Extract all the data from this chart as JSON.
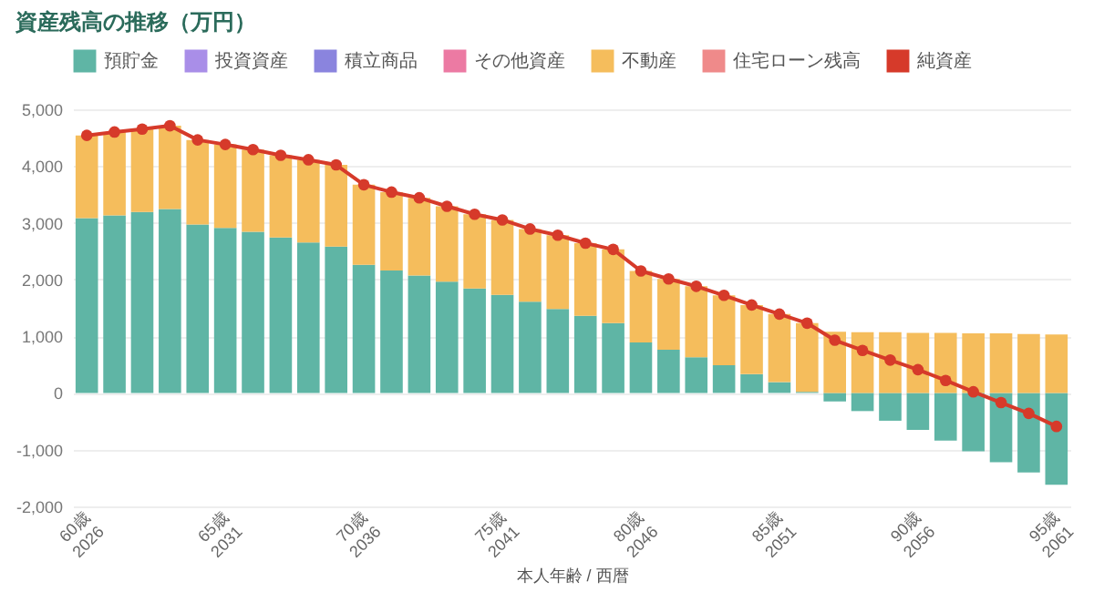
{
  "chart_data": {
    "type": "bar",
    "title": "資産残高の推移（万円）",
    "xlabel": "本人年齢 / 西暦",
    "categories": [
      "60歳\n2026",
      null,
      null,
      null,
      null,
      "65歳\n2031",
      null,
      null,
      null,
      null,
      "70歳\n2036",
      null,
      null,
      null,
      null,
      "75歳\n2041",
      null,
      null,
      null,
      null,
      "80歳\n2046",
      null,
      null,
      null,
      null,
      "85歳\n2051",
      null,
      null,
      null,
      null,
      "90歳\n2056",
      null,
      null,
      null,
      null,
      "95歳\n2061"
    ],
    "series": [
      {
        "name": "預貯金",
        "color": "#5fb5a5",
        "values": [
          3080,
          3130,
          3190,
          3240,
          2970,
          2910,
          2840,
          2740,
          2650,
          2580,
          2260,
          2160,
          2070,
          1960,
          1840,
          1730,
          1610,
          1480,
          1360,
          1230,
          890,
          760,
          630,
          490,
          330,
          190,
          20,
          -150,
          -320,
          -490,
          -650,
          -840,
          -1030,
          -1220,
          -1400,
          -1620
        ]
      },
      {
        "name": "投資資産",
        "color": "#a98ee8",
        "values": [
          null,
          null,
          null,
          null,
          null,
          null,
          null,
          null,
          null,
          null,
          null,
          null,
          null,
          null,
          null,
          null,
          null,
          null,
          null,
          null,
          null,
          null,
          null,
          null,
          null,
          null,
          null,
          null,
          null,
          null,
          null,
          null,
          null,
          null,
          null,
          null
        ]
      },
      {
        "name": "積立商品",
        "color": "#8a84de",
        "values": [
          null,
          null,
          null,
          null,
          null,
          null,
          null,
          null,
          null,
          null,
          null,
          null,
          null,
          null,
          null,
          null,
          null,
          null,
          null,
          null,
          null,
          null,
          null,
          null,
          null,
          null,
          null,
          null,
          null,
          null,
          null,
          null,
          null,
          null,
          null,
          null
        ]
      },
      {
        "name": "その他資産",
        "color": "#ec7aa3",
        "values": [
          null,
          null,
          null,
          null,
          null,
          null,
          null,
          null,
          null,
          null,
          null,
          null,
          null,
          null,
          null,
          null,
          null,
          null,
          null,
          null,
          null,
          null,
          null,
          null,
          null,
          null,
          null,
          null,
          null,
          null,
          null,
          null,
          null,
          null,
          null,
          null
        ]
      },
      {
        "name": "不動産",
        "color": "#f5bd5c",
        "values": [
          1460,
          1470,
          1460,
          1470,
          1490,
          1470,
          1450,
          1450,
          1460,
          1440,
          1410,
          1380,
          1370,
          1330,
          1310,
          1320,
          1280,
          1300,
          1280,
          1300,
          1260,
          1250,
          1250,
          1230,
          1220,
          1200,
          1210,
          1080,
          1070,
          1070,
          1060,
          1060,
          1050,
          1050,
          1040,
          1030
        ]
      },
      {
        "name": "住宅ローン残高",
        "color": "#ef8a8a",
        "values": [
          null,
          null,
          null,
          null,
          null,
          null,
          null,
          null,
          null,
          null,
          null,
          null,
          null,
          null,
          null,
          null,
          null,
          null,
          null,
          null,
          null,
          null,
          null,
          null,
          null,
          null,
          null,
          null,
          null,
          null,
          null,
          null,
          null,
          null,
          null,
          null
        ]
      },
      {
        "name": "純資産",
        "type": "line",
        "color": "#d63a2a",
        "values": [
          4540,
          4600,
          4650,
          4710,
          4460,
          4380,
          4290,
          4190,
          4110,
          4020,
          3670,
          3540,
          3440,
          3290,
          3150,
          3050,
          2890,
          2780,
          2640,
          2530,
          2150,
          2010,
          1880,
          1720,
          1550,
          1390,
          1230,
          930,
          750,
          580,
          410,
          220,
          20,
          -170,
          -360,
          -590
        ]
      }
    ],
    "stacked": true,
    "ylim": [
      -2000,
      5000
    ],
    "yticks": [
      {
        "value": -2000,
        "label": "-2,000"
      },
      {
        "value": -1000,
        "label": "-1,000"
      },
      0,
      {
        "value": 1000,
        "label": "1,000"
      },
      {
        "value": 2000,
        "label": "2,000"
      },
      {
        "value": 3000,
        "label": "3,000"
      },
      {
        "value": 4000,
        "label": "4,000"
      },
      {
        "value": 5000,
        "label": "5,000"
      }
    ],
    "grid": "y",
    "legend": "top",
    "marker": "circle"
  }
}
